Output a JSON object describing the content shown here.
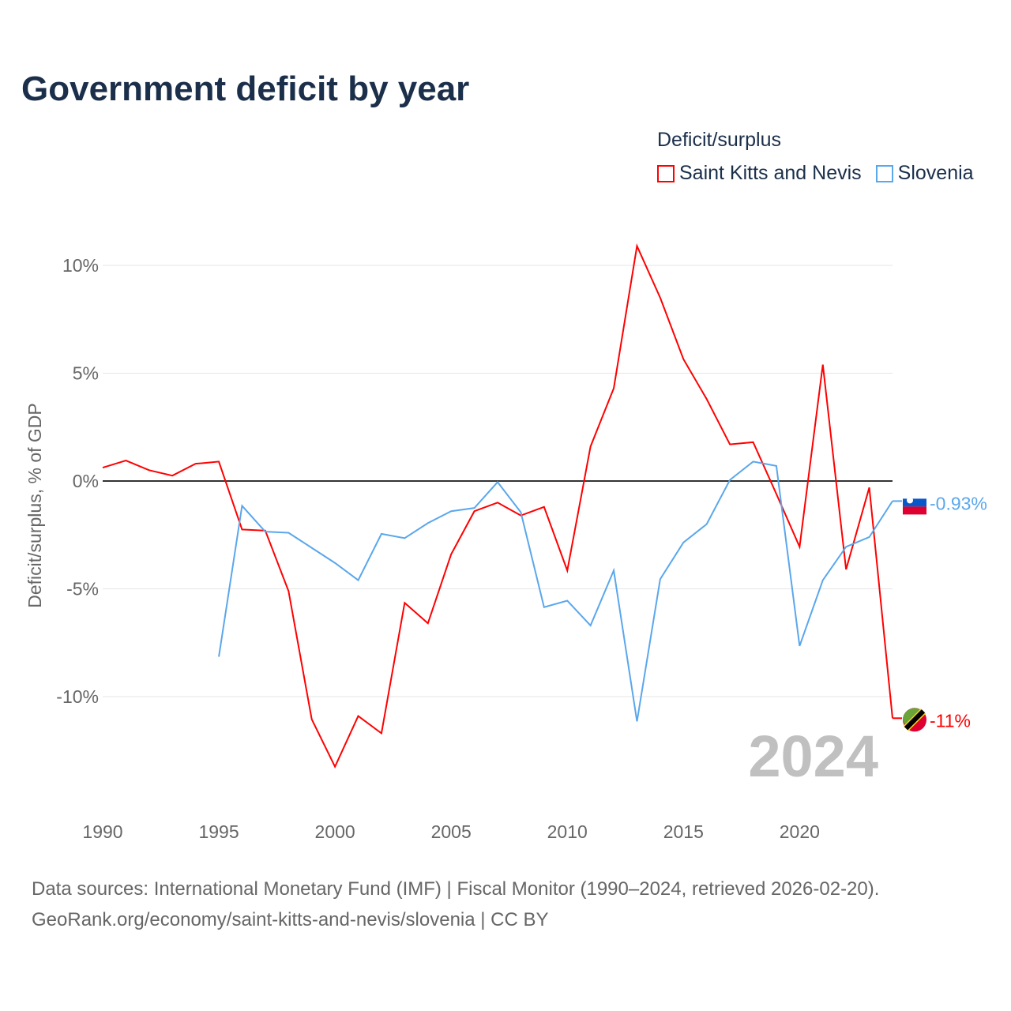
{
  "chart_data": {
    "type": "line",
    "title": "Government deficit by year",
    "ylabel": "Deficit/surplus, % of GDP",
    "xlabel": "",
    "xlim": [
      1990,
      2024
    ],
    "ylim": [
      -14.7,
      11.8
    ],
    "x_ticks": [
      1990,
      1995,
      2000,
      2005,
      2010,
      2015,
      2020
    ],
    "y_ticks": [
      {
        "v": 10,
        "label": "10%"
      },
      {
        "v": 5,
        "label": "5%"
      },
      {
        "v": 0,
        "label": "0%"
      },
      {
        "v": -5,
        "label": "-5%"
      },
      {
        "v": -10,
        "label": "-10%"
      }
    ],
    "grid": true,
    "legend_title": "Deficit/surplus",
    "legend_position": "top-right",
    "year_watermark": "2024",
    "series": [
      {
        "name": "Saint Kitts and Nevis",
        "color": "#ff0000",
        "end_label": "-11%",
        "start_year": 1990,
        "values": [
          0.62,
          0.95,
          0.5,
          0.25,
          0.8,
          0.9,
          -2.25,
          -2.3,
          -5.1,
          -11.05,
          -13.25,
          -10.9,
          -11.7,
          -5.65,
          -6.6,
          -3.4,
          -1.4,
          -1.0,
          -1.6,
          -1.2,
          -4.15,
          1.6,
          4.3,
          10.9,
          8.5,
          5.65,
          3.8,
          1.7,
          1.8,
          -0.6,
          -3.05,
          5.4,
          -4.1,
          -0.3,
          -11.0
        ]
      },
      {
        "name": "Slovenia",
        "color": "#5aa7ec",
        "end_label": "-0.93%",
        "start_year": 1995,
        "values": [
          -8.15,
          -1.15,
          -2.35,
          -2.4,
          -3.1,
          -3.8,
          -4.6,
          -2.45,
          -2.65,
          -1.95,
          -1.4,
          -1.25,
          -0.05,
          -1.45,
          -5.85,
          -5.55,
          -6.7,
          -4.15,
          -11.15,
          -4.55,
          -2.85,
          -2.0,
          0.05,
          0.9,
          0.7,
          -7.65,
          -4.6,
          -3.05,
          -2.6,
          -0.93
        ]
      }
    ]
  },
  "footer": {
    "line1": "Data sources: International Monetary Fund (IMF) | Fiscal Monitor (1990–2024, retrieved 2026-02-20).",
    "line2": "GeoRank.org/economy/saint-kitts-and-nevis/slovenia | CC BY"
  }
}
